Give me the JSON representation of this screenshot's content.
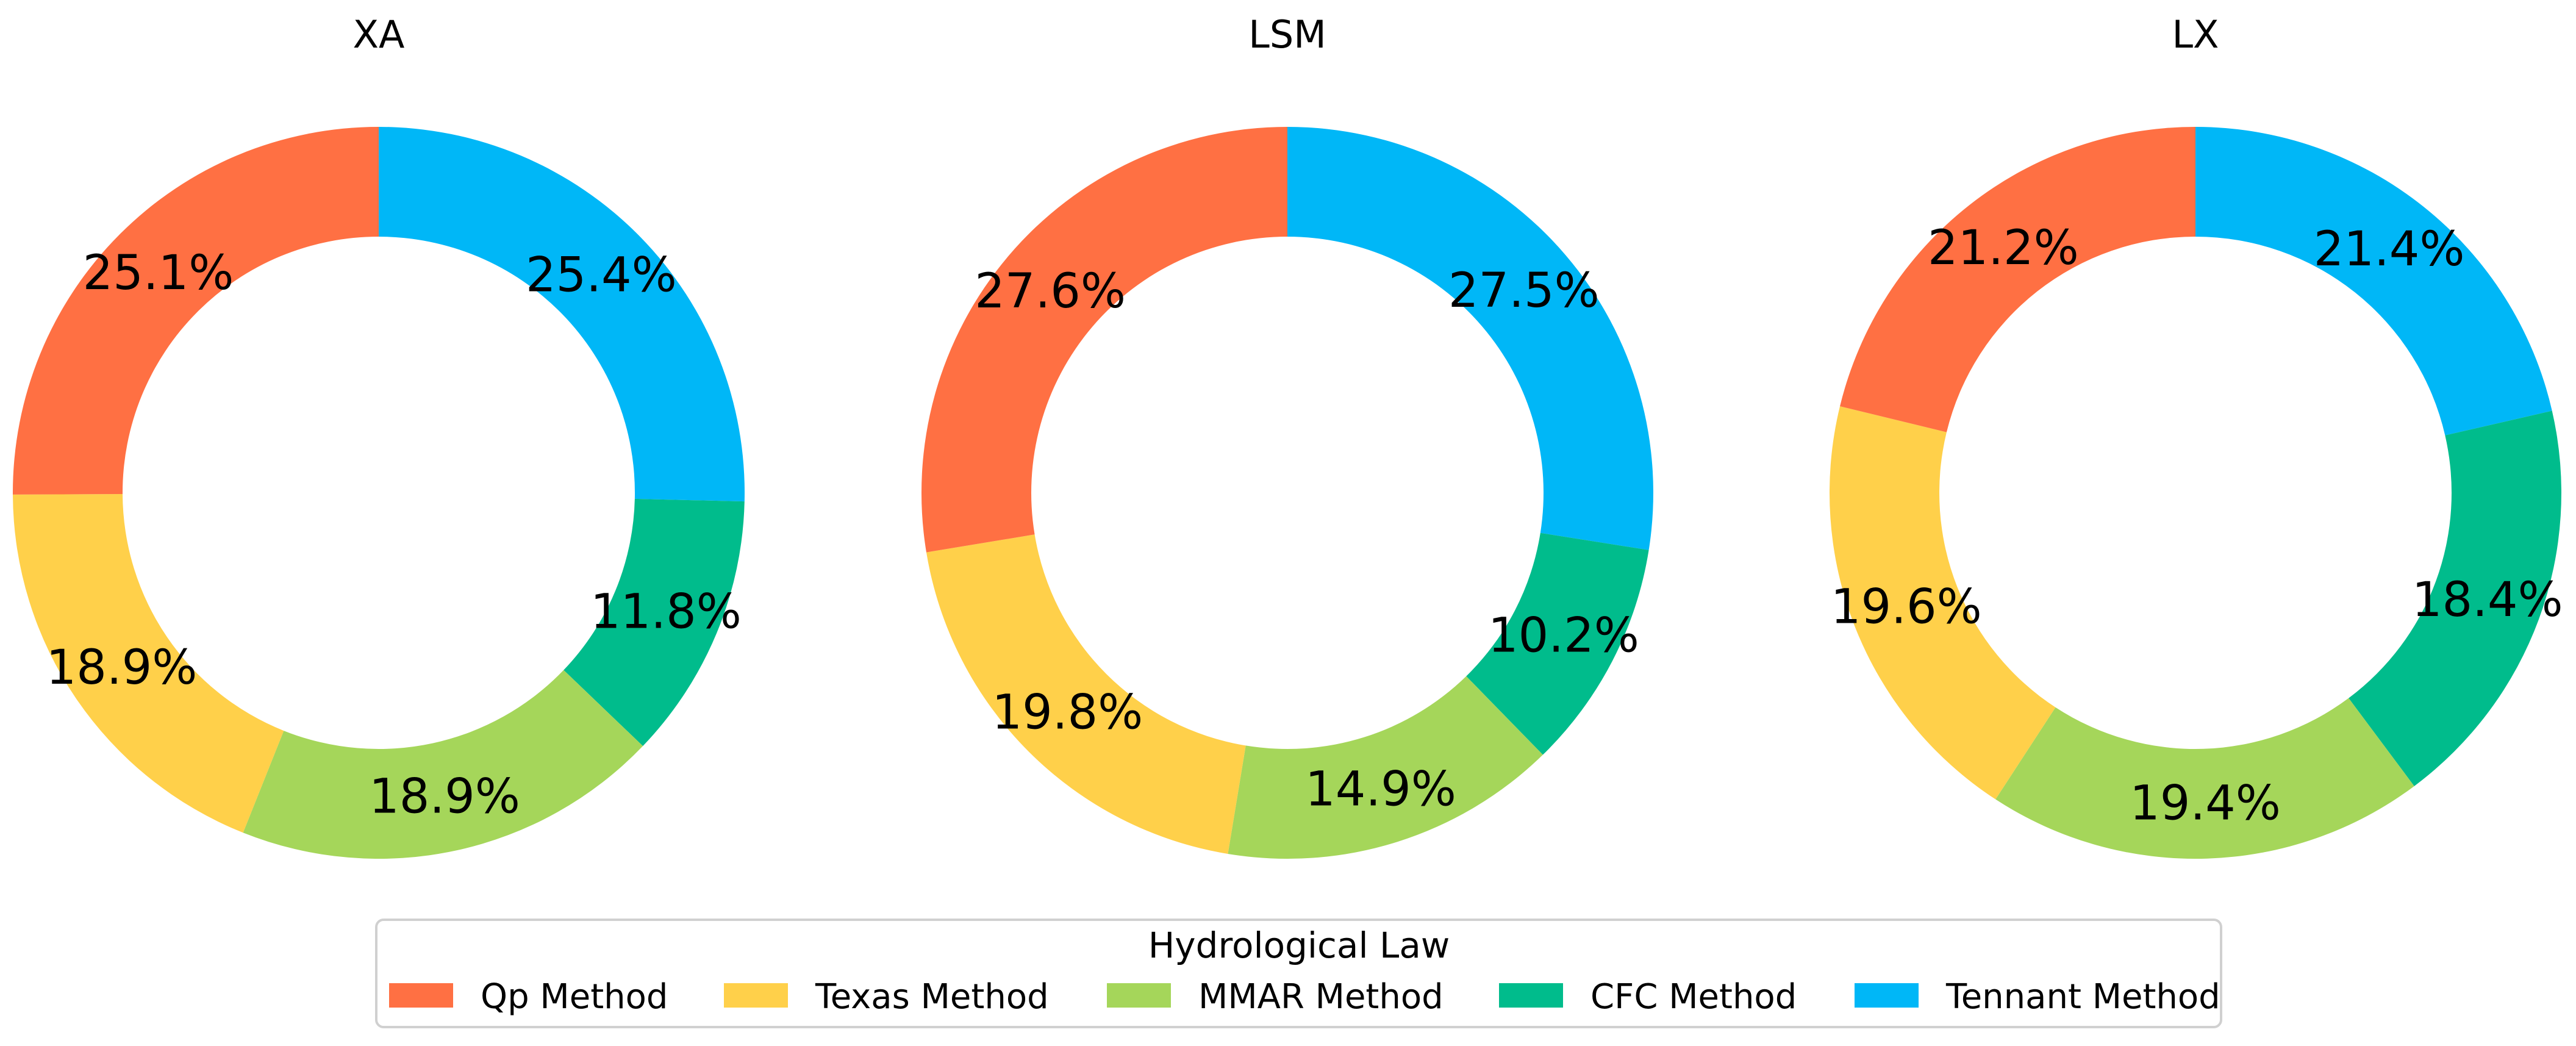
{
  "chart_data": [
    {
      "type": "pie",
      "title": "XA",
      "categories": [
        "Tennant Method",
        "CFC Method",
        "MMAR Method",
        "Texas Method",
        "Qp Method"
      ],
      "values": [
        25.4,
        11.8,
        18.9,
        18.9,
        25.1
      ],
      "labels": [
        "25.4%",
        "11.8%",
        "18.9%",
        "18.9%",
        "25.1%"
      ]
    },
    {
      "type": "pie",
      "title": "LSM",
      "categories": [
        "Tennant Method",
        "CFC Method",
        "MMAR Method",
        "Texas Method",
        "Qp Method"
      ],
      "values": [
        27.5,
        10.2,
        14.9,
        19.8,
        27.6
      ],
      "labels": [
        "27.5%",
        "10.2%",
        "14.9%",
        "19.8%",
        "27.6%"
      ]
    },
    {
      "type": "pie",
      "title": "LX",
      "categories": [
        "Tennant Method",
        "CFC Method",
        "MMAR Method",
        "Texas Method",
        "Qp Method"
      ],
      "values": [
        21.4,
        18.4,
        19.4,
        19.6,
        21.2
      ],
      "labels": [
        "21.4%",
        "18.4%",
        "19.4%",
        "19.6%",
        "21.2%"
      ]
    }
  ],
  "legend": {
    "title": "Hydrological Law",
    "placement": "bottom-center",
    "items": [
      {
        "label": "Qp Method",
        "color": "#FF7043"
      },
      {
        "label": "Texas Method",
        "color": "#FFD04A"
      },
      {
        "label": "MMAR Method",
        "color": "#A5D65A"
      },
      {
        "label": "CFC Method",
        "color": "#00BC8C"
      },
      {
        "label": "Tennant Method",
        "color": "#00B7F7"
      }
    ]
  },
  "colors": {
    "Qp Method": "#FF7043",
    "Texas Method": "#FFD04A",
    "MMAR Method": "#A5D65A",
    "CFC Method": "#00BC8C",
    "Tennant Method": "#00B7F7"
  }
}
